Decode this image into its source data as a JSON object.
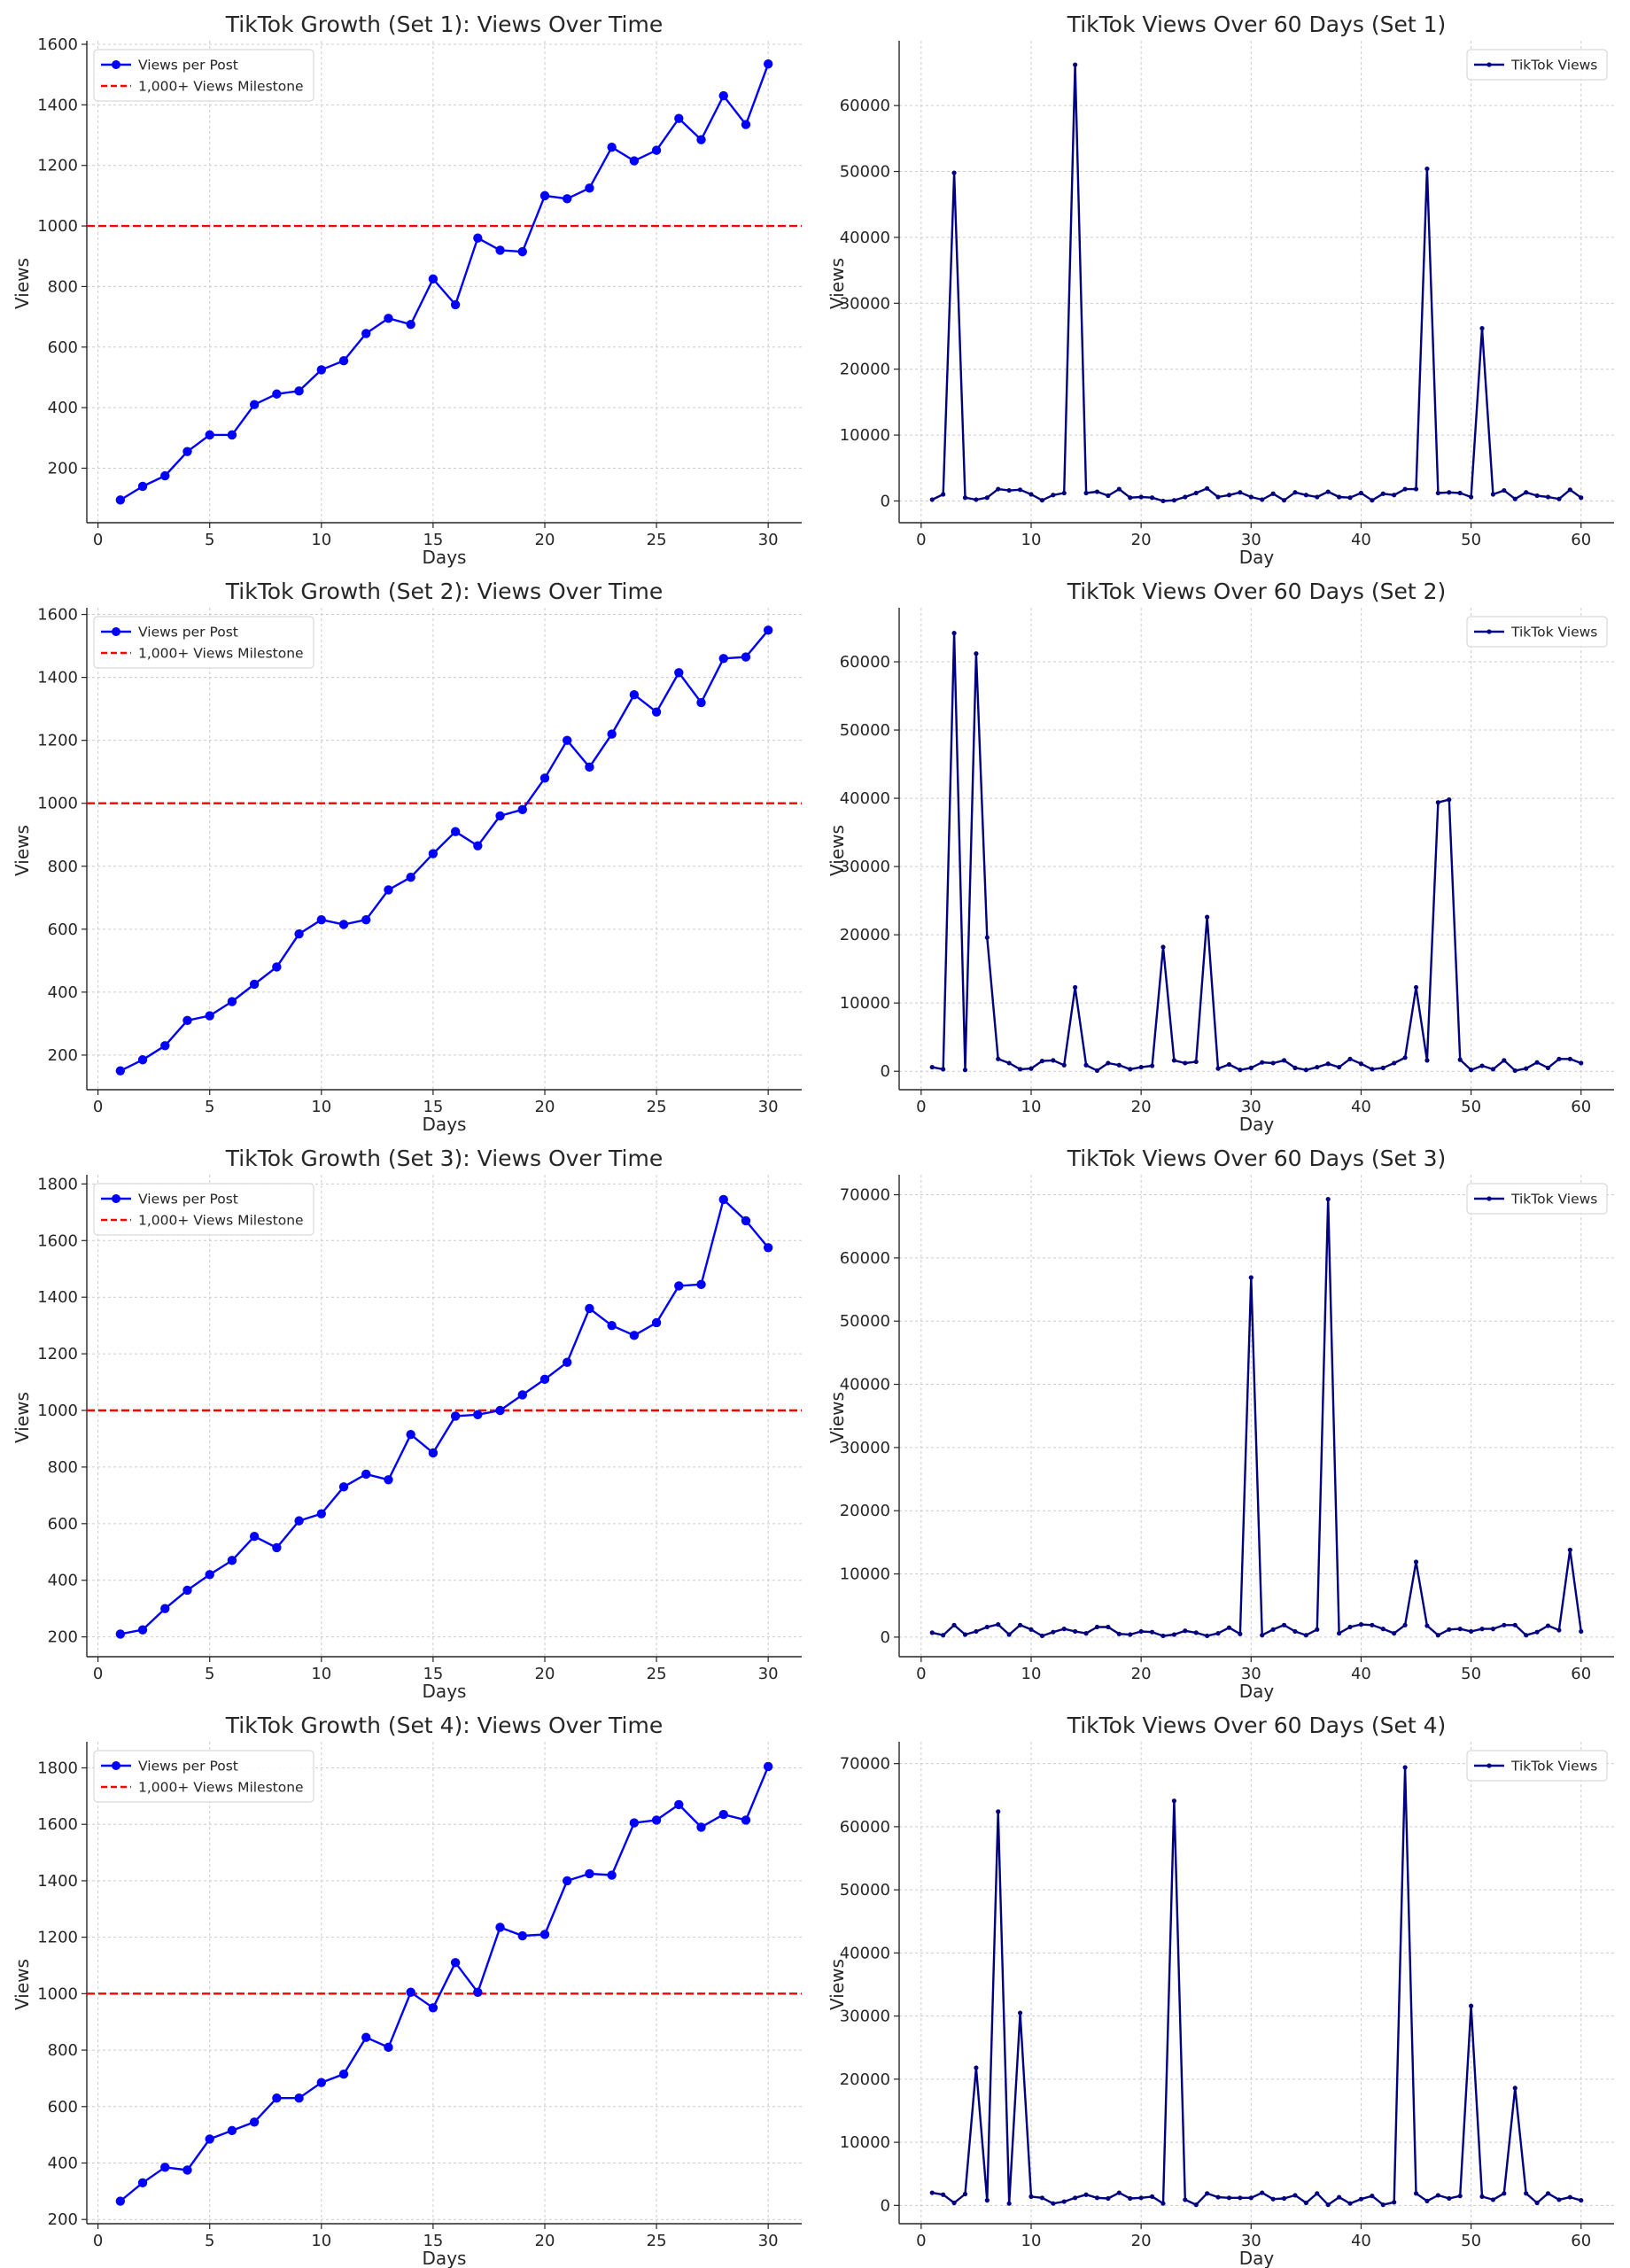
{
  "colors": {
    "growth_line": "#0000ff",
    "milestone": "#ff0000",
    "views_line": "#000080",
    "grid": "#cccccc",
    "axis": "#262626"
  },
  "chart_data": [
    {
      "type": "line",
      "title": "TikTok Growth (Set 1): Views Over Time",
      "xlabel": "Days",
      "ylabel": "Views",
      "xlim": [
        -0.5,
        31.5
      ],
      "ylim": [
        20,
        1600
      ],
      "xticks": [
        0,
        5,
        10,
        15,
        20,
        25,
        30
      ],
      "yticks": [
        200,
        400,
        600,
        800,
        1000,
        1200,
        1400,
        1600
      ],
      "grid": true,
      "legend": "top-left",
      "x": [
        1,
        2,
        3,
        4,
        5,
        6,
        7,
        8,
        9,
        10,
        11,
        12,
        13,
        14,
        15,
        16,
        17,
        18,
        19,
        20,
        21,
        22,
        23,
        24,
        25,
        26,
        27,
        28,
        29,
        30
      ],
      "series": [
        {
          "name": "Views per Post",
          "style": "line-marker",
          "color": "#0000ff",
          "values": [
            95,
            140,
            175,
            255,
            310,
            310,
            410,
            445,
            455,
            525,
            555,
            645,
            695,
            675,
            825,
            740,
            960,
            920,
            915,
            1100,
            1090,
            1125,
            1260,
            1215,
            1250,
            1355,
            1285,
            1430,
            1335,
            1535
          ]
        }
      ],
      "hlines": [
        {
          "name": "1,000+ Views Milestone",
          "value": 1000,
          "color": "#ff0000",
          "style": "dashed"
        }
      ]
    },
    {
      "type": "line",
      "title": "TikTok Views Over 60 Days (Set 1)",
      "xlabel": "Day",
      "ylabel": "Views",
      "xlim": [
        -2,
        63
      ],
      "ylim": [
        -3300,
        69300
      ],
      "xticks": [
        0,
        10,
        20,
        30,
        40,
        50,
        60
      ],
      "yticks": [
        0,
        10000,
        20000,
        30000,
        40000,
        50000,
        60000
      ],
      "grid": true,
      "legend": "top-right",
      "x": [
        1,
        2,
        3,
        4,
        5,
        6,
        7,
        8,
        9,
        10,
        11,
        12,
        13,
        14,
        15,
        16,
        17,
        18,
        19,
        20,
        21,
        22,
        23,
        24,
        25,
        26,
        27,
        28,
        29,
        30,
        31,
        32,
        33,
        34,
        35,
        36,
        37,
        38,
        39,
        40,
        41,
        42,
        43,
        44,
        45,
        46,
        47,
        48,
        49,
        50,
        51,
        52,
        53,
        54,
        55,
        56,
        57,
        58,
        59,
        60
      ],
      "series": [
        {
          "name": "TikTok Views",
          "style": "line-smallmarker",
          "color": "#000080",
          "values": [
            200,
            1000,
            49800,
            500,
            200,
            500,
            1800,
            1600,
            1700,
            1000,
            100,
            900,
            1200,
            66200,
            1200,
            1400,
            800,
            1800,
            500,
            600,
            500,
            0,
            100,
            600,
            1200,
            1900,
            600,
            900,
            1300,
            600,
            200,
            1100,
            100,
            1300,
            900,
            600,
            1400,
            600,
            500,
            1200,
            100,
            1100,
            900,
            1800,
            1800,
            50400,
            1200,
            1300,
            1200,
            600,
            26200,
            1000,
            1600,
            300,
            1300,
            800,
            600,
            300,
            1700,
            500
          ]
        }
      ]
    },
    {
      "type": "line",
      "title": "TikTok Growth (Set 2): Views Over Time",
      "xlabel": "Days",
      "ylabel": "Views",
      "xlim": [
        -0.5,
        31.5
      ],
      "ylim": [
        90,
        1610
      ],
      "xticks": [
        0,
        5,
        10,
        15,
        20,
        25,
        30
      ],
      "yticks": [
        200,
        400,
        600,
        800,
        1000,
        1200,
        1400,
        1600
      ],
      "grid": true,
      "legend": "top-left",
      "x": [
        1,
        2,
        3,
        4,
        5,
        6,
        7,
        8,
        9,
        10,
        11,
        12,
        13,
        14,
        15,
        16,
        17,
        18,
        19,
        20,
        21,
        22,
        23,
        24,
        25,
        26,
        27,
        28,
        29,
        30
      ],
      "series": [
        {
          "name": "Views per Post",
          "style": "line-marker",
          "color": "#0000ff",
          "values": [
            150,
            185,
            230,
            310,
            325,
            370,
            425,
            480,
            585,
            630,
            615,
            630,
            725,
            765,
            840,
            910,
            865,
            960,
            980,
            1080,
            1200,
            1115,
            1220,
            1345,
            1290,
            1415,
            1320,
            1460,
            1465,
            1550
          ]
        }
      ],
      "hlines": [
        {
          "name": "1,000+ Views Milestone",
          "value": 1000,
          "color": "#ff0000",
          "style": "dashed"
        }
      ]
    },
    {
      "type": "line",
      "title": "TikTok Views Over 60 Days (Set 2)",
      "xlabel": "Day",
      "ylabel": "Views",
      "xlim": [
        -2,
        63
      ],
      "ylim": [
        -2700,
        67400
      ],
      "xticks": [
        0,
        10,
        20,
        30,
        40,
        50,
        60
      ],
      "yticks": [
        0,
        10000,
        20000,
        30000,
        40000,
        50000,
        60000
      ],
      "grid": true,
      "legend": "top-right",
      "x": [
        1,
        2,
        3,
        4,
        5,
        6,
        7,
        8,
        9,
        10,
        11,
        12,
        13,
        14,
        15,
        16,
        17,
        18,
        19,
        20,
        21,
        22,
        23,
        24,
        25,
        26,
        27,
        28,
        29,
        30,
        31,
        32,
        33,
        34,
        35,
        36,
        37,
        38,
        39,
        40,
        41,
        42,
        43,
        44,
        45,
        46,
        47,
        48,
        49,
        50,
        51,
        52,
        53,
        54,
        55,
        56,
        57,
        58,
        59,
        60
      ],
      "series": [
        {
          "name": "TikTok Views",
          "style": "line-smallmarker",
          "color": "#000080",
          "values": [
            600,
            300,
            64200,
            200,
            61200,
            19600,
            1800,
            1200,
            300,
            400,
            1500,
            1600,
            900,
            12300,
            900,
            100,
            1200,
            900,
            300,
            600,
            800,
            18200,
            1600,
            1200,
            1400,
            22600,
            400,
            1000,
            200,
            500,
            1300,
            1200,
            1600,
            500,
            200,
            600,
            1100,
            600,
            1800,
            1100,
            300,
            500,
            1200,
            2000,
            12300,
            1600,
            39400,
            39800,
            1700,
            200,
            800,
            300,
            1600,
            100,
            400,
            1300,
            500,
            1800,
            1800,
            1200
          ]
        }
      ]
    },
    {
      "type": "line",
      "title": "TikTok Growth (Set 3): Views Over Time",
      "xlabel": "Days",
      "ylabel": "Views",
      "xlim": [
        -0.5,
        31.5
      ],
      "ylim": [
        130,
        1820
      ],
      "xticks": [
        0,
        5,
        10,
        15,
        20,
        25,
        30
      ],
      "yticks": [
        200,
        400,
        600,
        800,
        1000,
        1200,
        1400,
        1600,
        1800
      ],
      "grid": true,
      "legend": "top-left",
      "x": [
        1,
        2,
        3,
        4,
        5,
        6,
        7,
        8,
        9,
        10,
        11,
        12,
        13,
        14,
        15,
        16,
        17,
        18,
        19,
        20,
        21,
        22,
        23,
        24,
        25,
        26,
        27,
        28,
        29,
        30
      ],
      "series": [
        {
          "name": "Views per Post",
          "style": "line-marker",
          "color": "#0000ff",
          "values": [
            210,
            225,
            300,
            365,
            420,
            470,
            555,
            515,
            610,
            635,
            730,
            775,
            755,
            915,
            850,
            980,
            985,
            1000,
            1055,
            1110,
            1170,
            1360,
            1300,
            1265,
            1310,
            1440,
            1445,
            1745,
            1670,
            1575
          ]
        }
      ],
      "hlines": [
        {
          "name": "1,000+ Views Milestone",
          "value": 1000,
          "color": "#ff0000",
          "style": "dashed"
        }
      ]
    },
    {
      "type": "line",
      "title": "TikTok Views Over 60 Days (Set 3)",
      "xlabel": "Day",
      "ylabel": "Views",
      "xlim": [
        -2,
        63
      ],
      "ylim": [
        -3100,
        72600
      ],
      "xticks": [
        0,
        10,
        20,
        30,
        40,
        50,
        60
      ],
      "yticks": [
        0,
        10000,
        20000,
        30000,
        40000,
        50000,
        60000,
        70000
      ],
      "grid": true,
      "legend": "top-right",
      "x": [
        1,
        2,
        3,
        4,
        5,
        6,
        7,
        8,
        9,
        10,
        11,
        12,
        13,
        14,
        15,
        16,
        17,
        18,
        19,
        20,
        21,
        22,
        23,
        24,
        25,
        26,
        27,
        28,
        29,
        30,
        31,
        32,
        33,
        34,
        35,
        36,
        37,
        38,
        39,
        40,
        41,
        42,
        43,
        44,
        45,
        46,
        47,
        48,
        49,
        50,
        51,
        52,
        53,
        54,
        55,
        56,
        57,
        58,
        59,
        60
      ],
      "series": [
        {
          "name": "TikTok Views",
          "style": "line-smallmarker",
          "color": "#000080",
          "values": [
            700,
            300,
            1900,
            400,
            900,
            1600,
            2000,
            400,
            1900,
            1200,
            200,
            800,
            1300,
            900,
            600,
            1600,
            1600,
            500,
            400,
            900,
            800,
            200,
            400,
            1000,
            700,
            200,
            600,
            1500,
            500,
            56900,
            300,
            1200,
            1900,
            900,
            300,
            1200,
            69300,
            600,
            1600,
            2000,
            1900,
            1300,
            600,
            1900,
            11900,
            1800,
            300,
            1200,
            1300,
            900,
            1300,
            1300,
            1900,
            1900,
            300,
            800,
            1800,
            1100,
            13800,
            900
          ]
        }
      ]
    },
    {
      "type": "line",
      "title": "TikTok Growth (Set 4): Views Over Time",
      "xlabel": "Days",
      "ylabel": "Views",
      "xlim": [
        -0.5,
        31.5
      ],
      "ylim": [
        185,
        1880
      ],
      "xticks": [
        0,
        5,
        10,
        15,
        20,
        25,
        30
      ],
      "yticks": [
        200,
        400,
        600,
        800,
        1000,
        1200,
        1400,
        1600,
        1800
      ],
      "grid": true,
      "legend": "top-left",
      "x": [
        1,
        2,
        3,
        4,
        5,
        6,
        7,
        8,
        9,
        10,
        11,
        12,
        13,
        14,
        15,
        16,
        17,
        18,
        19,
        20,
        21,
        22,
        23,
        24,
        25,
        26,
        27,
        28,
        29,
        30
      ],
      "series": [
        {
          "name": "Views per Post",
          "style": "line-marker",
          "color": "#0000ff",
          "values": [
            265,
            330,
            385,
            375,
            485,
            515,
            545,
            630,
            630,
            685,
            715,
            845,
            810,
            1005,
            950,
            1110,
            1005,
            1235,
            1205,
            1210,
            1400,
            1425,
            1420,
            1605,
            1615,
            1670,
            1590,
            1635,
            1615,
            1805
          ]
        }
      ],
      "hlines": [
        {
          "name": "1,000+ Views Milestone",
          "value": 1000,
          "color": "#ff0000",
          "style": "dashed"
        }
      ]
    },
    {
      "type": "line",
      "title": "TikTok Views Over 60 Days (Set 4)",
      "xlabel": "Day",
      "ylabel": "Views",
      "xlim": [
        -2,
        63
      ],
      "ylim": [
        -2900,
        72900
      ],
      "xticks": [
        0,
        10,
        20,
        30,
        40,
        50,
        60
      ],
      "yticks": [
        0,
        10000,
        20000,
        30000,
        40000,
        50000,
        60000,
        70000
      ],
      "grid": true,
      "legend": "top-right",
      "x": [
        1,
        2,
        3,
        4,
        5,
        6,
        7,
        8,
        9,
        10,
        11,
        12,
        13,
        14,
        15,
        16,
        17,
        18,
        19,
        20,
        21,
        22,
        23,
        24,
        25,
        26,
        27,
        28,
        29,
        30,
        31,
        32,
        33,
        34,
        35,
        36,
        37,
        38,
        39,
        40,
        41,
        42,
        43,
        44,
        45,
        46,
        47,
        48,
        49,
        50,
        51,
        52,
        53,
        54,
        55,
        56,
        57,
        58,
        59,
        60
      ],
      "series": [
        {
          "name": "TikTok Views",
          "style": "line-smallmarker",
          "color": "#000080",
          "values": [
            2000,
            1700,
            400,
            1800,
            21800,
            800,
            62400,
            300,
            30500,
            1400,
            1200,
            300,
            600,
            1200,
            1700,
            1200,
            1100,
            2000,
            1100,
            1200,
            1400,
            300,
            64100,
            900,
            100,
            1900,
            1300,
            1200,
            1200,
            1200,
            2000,
            1000,
            1100,
            1600,
            400,
            1900,
            100,
            1300,
            300,
            1000,
            1500,
            100,
            500,
            69400,
            1900,
            700,
            1600,
            1100,
            1500,
            31600,
            1400,
            900,
            1900,
            18600,
            1900,
            400,
            1900,
            900,
            1300,
            800
          ]
        }
      ]
    }
  ]
}
